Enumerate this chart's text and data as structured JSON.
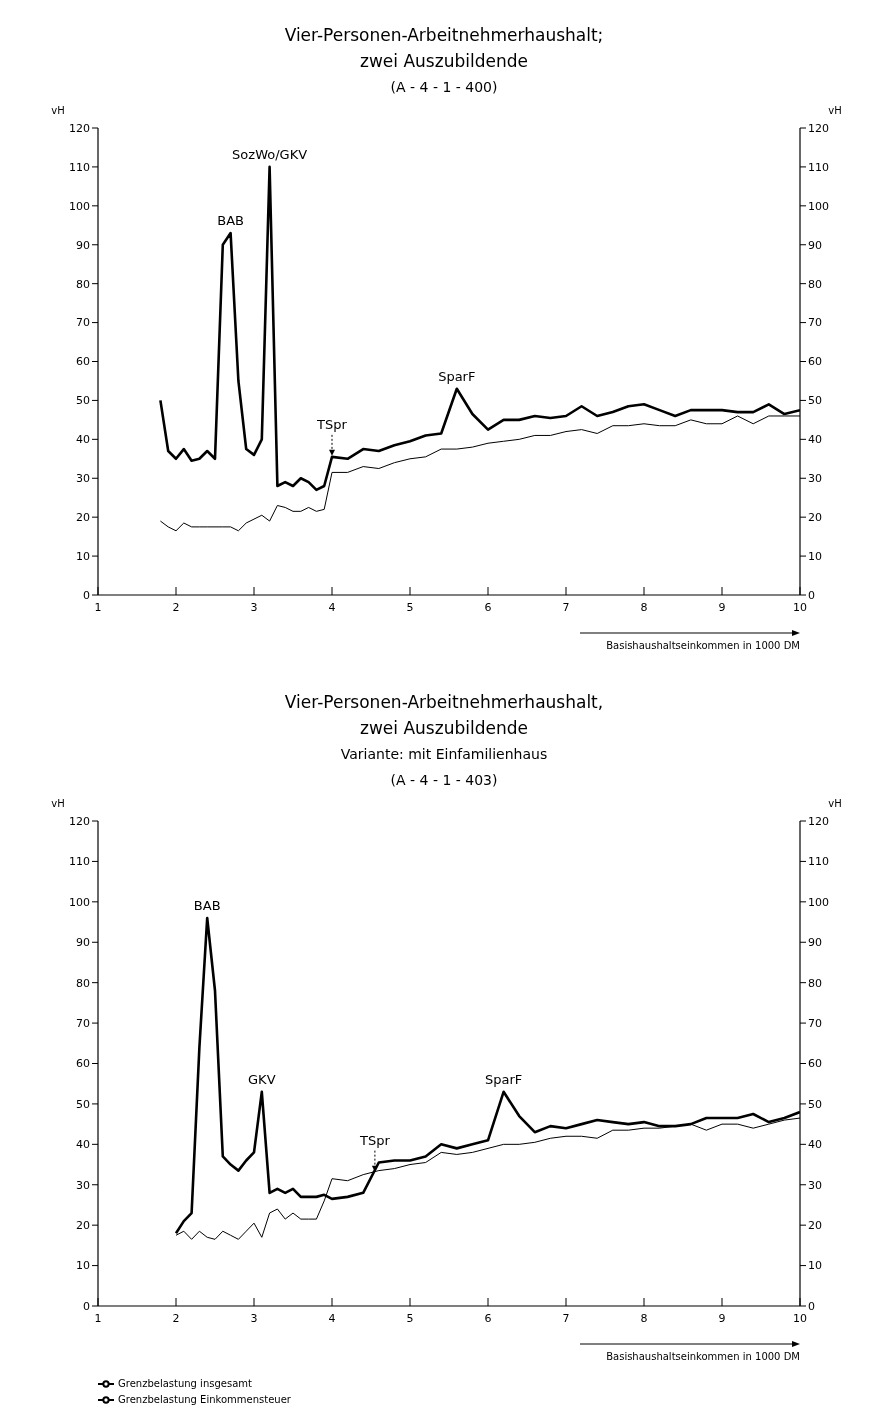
{
  "chart_data": [
    {
      "type": "line",
      "title": "Vier-Personen-Arbeitnehmerhaushalt;\nzwei Auszubildende",
      "subtitle": "(A - 4 - 1 - 400)",
      "xlabel": "Basishaushaltseinkommen in 1000 DM",
      "ylabel": "vH",
      "y2label": "vH",
      "xlim": [
        1,
        10
      ],
      "xticks": [
        1,
        2,
        3,
        4,
        5,
        6,
        7,
        8,
        9,
        10
      ],
      "ylim": [
        0,
        120
      ],
      "yticks": [
        0,
        10,
        20,
        30,
        40,
        50,
        60,
        70,
        80,
        90,
        100,
        110,
        120
      ],
      "y2lim": [
        0,
        120
      ],
      "y2ticks": [
        0,
        10,
        20,
        30,
        40,
        50,
        60,
        70,
        80,
        90,
        100,
        110,
        120
      ],
      "grid": false,
      "marker": "none",
      "line_style": "solid",
      "annotations": [
        {
          "text": "BAB",
          "x": 2.7,
          "y": 93
        },
        {
          "text": "SozWo/GKV",
          "x": 3.2,
          "y": 110
        },
        {
          "text": "TSpr",
          "x": 4,
          "y": 35.5
        },
        {
          "text": "SparF",
          "x": 5.6,
          "y": 53
        }
      ],
      "series": [
        {
          "color": "#000000",
          "x": [
            1.8,
            1.9,
            2.0,
            2.1,
            2.2,
            2.3,
            2.4,
            2.5,
            2.6,
            2.7,
            2.8,
            2.9,
            3.0,
            3.1,
            3.2,
            3.3,
            3.4,
            3.5,
            3.6,
            3.7,
            3.8,
            3.9,
            4.0,
            4.2,
            4.4,
            4.6,
            4.8,
            5.0,
            5.2,
            5.4,
            5.6,
            5.8,
            6.0,
            6.2,
            6.4,
            6.6,
            6.8,
            7.0,
            7.2,
            7.4,
            7.6,
            7.8,
            8.0,
            8.2,
            8.4,
            8.6,
            8.8,
            9.0,
            9.2,
            9.4,
            9.6,
            9.8,
            10.0
          ],
          "values": [
            50,
            37,
            35,
            37.5,
            34.5,
            35,
            37,
            35,
            90,
            93,
            55,
            37.5,
            36,
            40,
            110,
            28,
            29,
            28,
            30,
            29,
            27,
            28,
            35.5,
            35,
            37.5,
            37,
            38.5,
            39.5,
            41,
            41.5,
            53,
            46.5,
            42.5,
            45,
            45,
            46,
            45.5,
            46,
            48.5,
            46,
            47,
            48.5,
            49,
            47.5,
            46,
            47.5,
            47.5,
            47.5,
            47,
            47,
            49,
            46.5,
            47.5
          ]
        },
        {
          "color": "#000000",
          "x": [
            1.8,
            1.9,
            2.0,
            2.1,
            2.2,
            2.3,
            2.4,
            2.5,
            2.6,
            2.7,
            2.8,
            2.9,
            3.0,
            3.1,
            3.2,
            3.3,
            3.4,
            3.5,
            3.6,
            3.7,
            3.8,
            3.9,
            4.0,
            4.2,
            4.4,
            4.6,
            4.8,
            5.0,
            5.2,
            5.4,
            5.6,
            5.8,
            6.0,
            6.2,
            6.4,
            6.6,
            6.8,
            7.0,
            7.2,
            7.4,
            7.6,
            7.8,
            8.0,
            8.2,
            8.4,
            8.6,
            8.8,
            9.0,
            9.2,
            9.4,
            9.6,
            9.8,
            10.0
          ],
          "values": [
            19,
            17.5,
            16.5,
            18.5,
            17.5,
            17.5,
            17.5,
            17.5,
            17.5,
            17.5,
            16.5,
            18.5,
            19.5,
            20.5,
            19,
            23,
            22.5,
            21.5,
            21.5,
            22.5,
            21.5,
            22,
            31.5,
            31.5,
            33,
            32.5,
            34,
            35,
            35.5,
            37.5,
            37.5,
            38,
            39,
            39.5,
            40,
            41,
            41,
            42,
            42.5,
            41.5,
            43.5,
            43.5,
            44,
            43.5,
            43.5,
            45,
            44,
            44,
            46,
            44,
            46,
            46,
            46
          ]
        }
      ]
    },
    {
      "type": "line",
      "title": "Vier-Personen-Arbeitnehmerhaushalt,\nzwei Auszubildende",
      "subtitle": "Variante: mit Einfamilienhaus\n(A - 4 - 1 - 403)",
      "xlabel": "Basishaushaltseinkommen in 1000 DM",
      "ylabel": "vH",
      "y2label": "vH",
      "xlim": [
        1,
        10
      ],
      "xticks": [
        1,
        2,
        3,
        4,
        5,
        6,
        7,
        8,
        9,
        10
      ],
      "ylim": [
        0,
        120
      ],
      "yticks": [
        0,
        10,
        20,
        30,
        40,
        50,
        60,
        70,
        80,
        90,
        100,
        110,
        120
      ],
      "y2lim": [
        0,
        120
      ],
      "y2ticks": [
        0,
        10,
        20,
        30,
        40,
        50,
        60,
        70,
        80,
        90,
        100,
        110,
        120
      ],
      "grid": false,
      "marker": "none",
      "line_style": "solid",
      "legend": "bottom left",
      "annotations": [
        {
          "text": "BAB",
          "x": 2.4,
          "y": 96
        },
        {
          "text": "GKV",
          "x": 3.1,
          "y": 53
        },
        {
          "text": "TSpr",
          "x": 4.55,
          "y": 33
        },
        {
          "text": "SparF",
          "x": 6.2,
          "y": 53
        }
      ],
      "series": [
        {
          "name": "Grenzbelastung insgesamt",
          "color": "#000000",
          "x": [
            2.0,
            2.1,
            2.2,
            2.3,
            2.4,
            2.5,
            2.6,
            2.7,
            2.8,
            2.9,
            3.0,
            3.1,
            3.2,
            3.3,
            3.4,
            3.5,
            3.6,
            3.7,
            3.8,
            3.9,
            4.0,
            4.2,
            4.4,
            4.6,
            4.8,
            5.0,
            5.2,
            5.4,
            5.6,
            5.8,
            6.0,
            6.2,
            6.4,
            6.6,
            6.8,
            7.0,
            7.2,
            7.4,
            7.6,
            7.8,
            8.0,
            8.2,
            8.4,
            8.6,
            8.8,
            9.0,
            9.2,
            9.4,
            9.6,
            9.8,
            10.0
          ],
          "values": [
            18,
            21,
            23,
            64,
            96,
            78,
            37,
            35,
            33.5,
            36,
            38,
            53,
            28,
            29,
            28,
            29,
            27,
            27,
            27,
            27.5,
            26.5,
            27,
            28,
            35.5,
            36,
            36,
            37,
            40,
            39,
            40,
            41,
            53,
            47,
            43,
            44.5,
            44,
            45,
            46,
            45.5,
            45,
            45.5,
            44.5,
            44.5,
            45,
            46.5,
            46.5,
            46.5,
            47.5,
            45.5,
            46.5,
            48
          ]
        },
        {
          "name": "Grenzbelastung Einkommensteuer",
          "color": "#000000",
          "x": [
            2.0,
            2.1,
            2.2,
            2.3,
            2.4,
            2.5,
            2.6,
            2.7,
            2.8,
            2.9,
            3.0,
            3.1,
            3.2,
            3.3,
            3.4,
            3.5,
            3.6,
            3.7,
            3.8,
            3.9,
            4.0,
            4.2,
            4.4,
            4.6,
            4.8,
            5.0,
            5.2,
            5.4,
            5.6,
            5.8,
            6.0,
            6.2,
            6.4,
            6.6,
            6.8,
            7.0,
            7.2,
            7.4,
            7.6,
            7.8,
            8.0,
            8.2,
            8.4,
            8.6,
            8.8,
            9.0,
            9.2,
            9.4,
            9.6,
            9.8,
            10.0
          ],
          "values": [
            17.5,
            18.5,
            16.5,
            18.5,
            17,
            16.5,
            18.5,
            17.5,
            16.5,
            18.5,
            20.5,
            17,
            23,
            24,
            21.5,
            23,
            21.5,
            21.5,
            21.5,
            26,
            31.5,
            31,
            32.5,
            33.5,
            34,
            35,
            35.5,
            38,
            37.5,
            38,
            39,
            40,
            40,
            40.5,
            41.5,
            42,
            42,
            41.5,
            43.5,
            43.5,
            44,
            44,
            44.5,
            45,
            43.5,
            45,
            45,
            44,
            45,
            46,
            46.5
          ]
        }
      ]
    }
  ]
}
